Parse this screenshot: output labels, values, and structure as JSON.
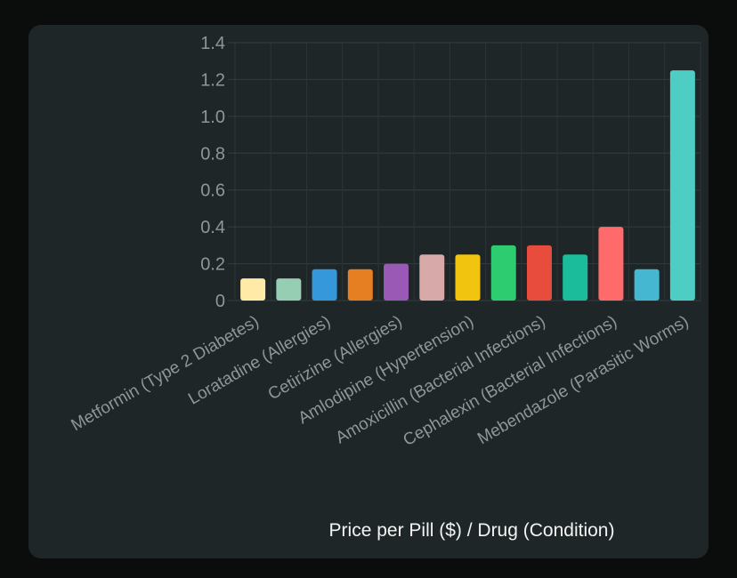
{
  "chart_data": {
    "type": "bar",
    "title": "",
    "xlabel": "Price per Pill ($) / Drug (Condition)",
    "ylabel": "",
    "ylim": [
      0,
      1.4
    ],
    "yticks": [
      "0",
      "0.2",
      "0.4",
      "0.6",
      "0.8",
      "1.0",
      "1.2",
      "1.4"
    ],
    "grid": true,
    "categories": [
      "Metformin (Type 2 Diabetes)",
      "",
      "Loratadine (Allergies)",
      "",
      "Cetirizine (Allergies)",
      "",
      "Amlodipine (Hypertension)",
      "",
      "Amoxicillin (Bacterial Infections)",
      "",
      "Cephalexin (Bacterial Infections)",
      "",
      "Mebendazole (Parasitic Worms)"
    ],
    "values": [
      0.12,
      0.12,
      0.17,
      0.17,
      0.2,
      0.25,
      0.25,
      0.3,
      0.3,
      0.25,
      0.4,
      0.17,
      1.25
    ],
    "colors": [
      "#FFEAA7",
      "#96CEB4",
      "#3498DB",
      "#E67E22",
      "#9B59B6",
      "#D7A9A9",
      "#F1C40F",
      "#2ECC71",
      "#E74C3C",
      "#1ABC9C",
      "#FF6B6B",
      "#45B7D1",
      "#4ECDC4"
    ]
  }
}
